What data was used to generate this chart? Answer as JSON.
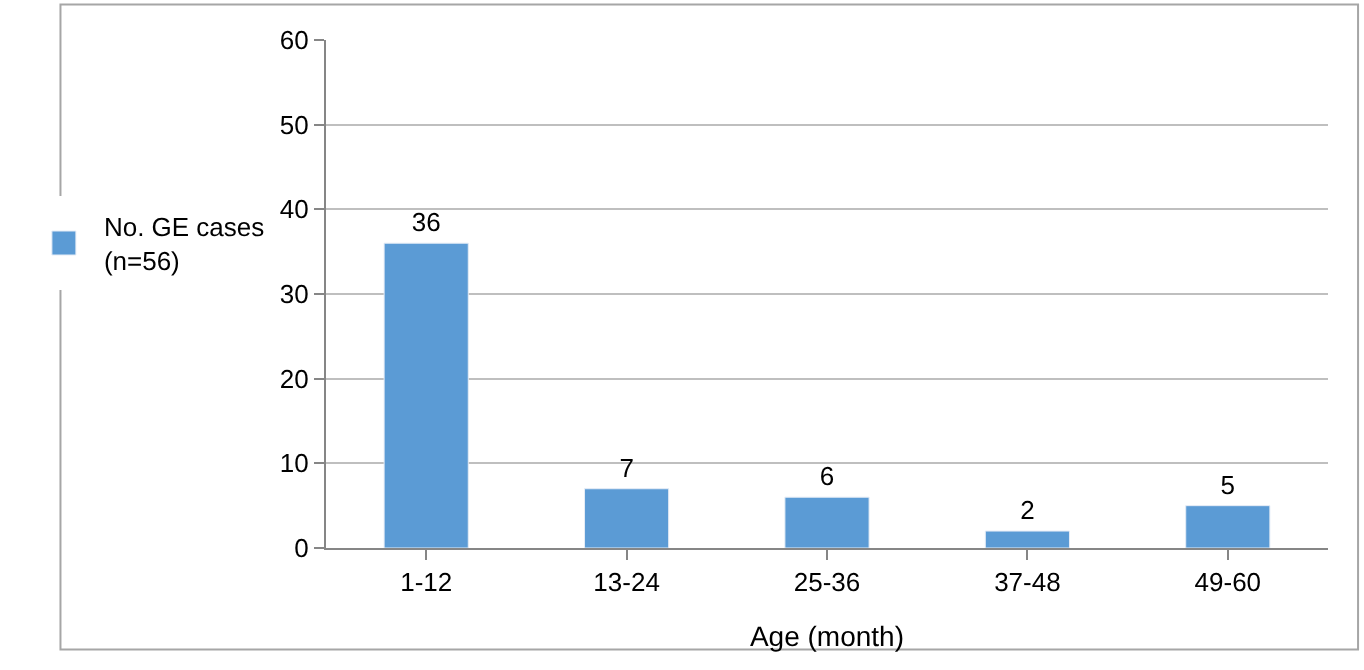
{
  "chart_data": {
    "type": "bar",
    "xlabel": "Age (month)",
    "categories": [
      "1-12",
      "13-24",
      "25-36",
      "37-48",
      "49-60"
    ],
    "series": [
      {
        "name": "No. GE cases (n=56)",
        "color": "#5b9bd5",
        "values": [
          36,
          7,
          6,
          2,
          5
        ]
      }
    ],
    "ylim": [
      0,
      60
    ],
    "yticks": [
      0,
      10,
      20,
      30,
      40,
      50,
      60
    ],
    "grid": "y",
    "legend": "left",
    "data_labels": true
  }
}
